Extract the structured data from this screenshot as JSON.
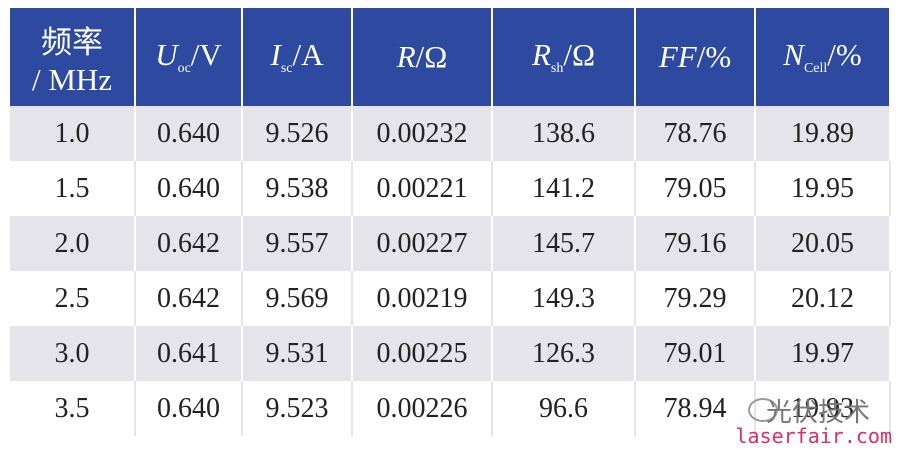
{
  "table": {
    "header": [
      {
        "lines": [
          "频率",
          "/ MHz"
        ]
      },
      {
        "main": "U",
        "sub": "oc",
        "unit": "/V"
      },
      {
        "main": "I",
        "sub": "sc",
        "unit": "/A"
      },
      {
        "main": "R",
        "sub": "",
        "unit": "/Ω"
      },
      {
        "main": "R",
        "sub": "sh",
        "unit": "/Ω"
      },
      {
        "main": "FF",
        "sub": "",
        "unit": "/%"
      },
      {
        "main": "N",
        "sub": "Cell",
        "unit": "/%"
      }
    ],
    "rows": [
      [
        "1.0",
        "0.640",
        "9.526",
        "0.00232",
        "138.6",
        "78.76",
        "19.89"
      ],
      [
        "1.5",
        "0.640",
        "9.538",
        "0.00221",
        "141.2",
        "79.05",
        "19.95"
      ],
      [
        "2.0",
        "0.642",
        "9.557",
        "0.00227",
        "145.7",
        "79.16",
        "20.05"
      ],
      [
        "2.5",
        "0.642",
        "9.569",
        "0.00219",
        "149.3",
        "79.29",
        "20.12"
      ],
      [
        "3.0",
        "0.641",
        "9.531",
        "0.00225",
        "126.3",
        "79.01",
        "19.97"
      ],
      [
        "3.5",
        "0.640",
        "9.523",
        "0.00226",
        "96.6",
        "78.94",
        "19.93"
      ]
    ]
  },
  "watermark": {
    "name": "光伏技术",
    "site": "laserfair.com"
  }
}
